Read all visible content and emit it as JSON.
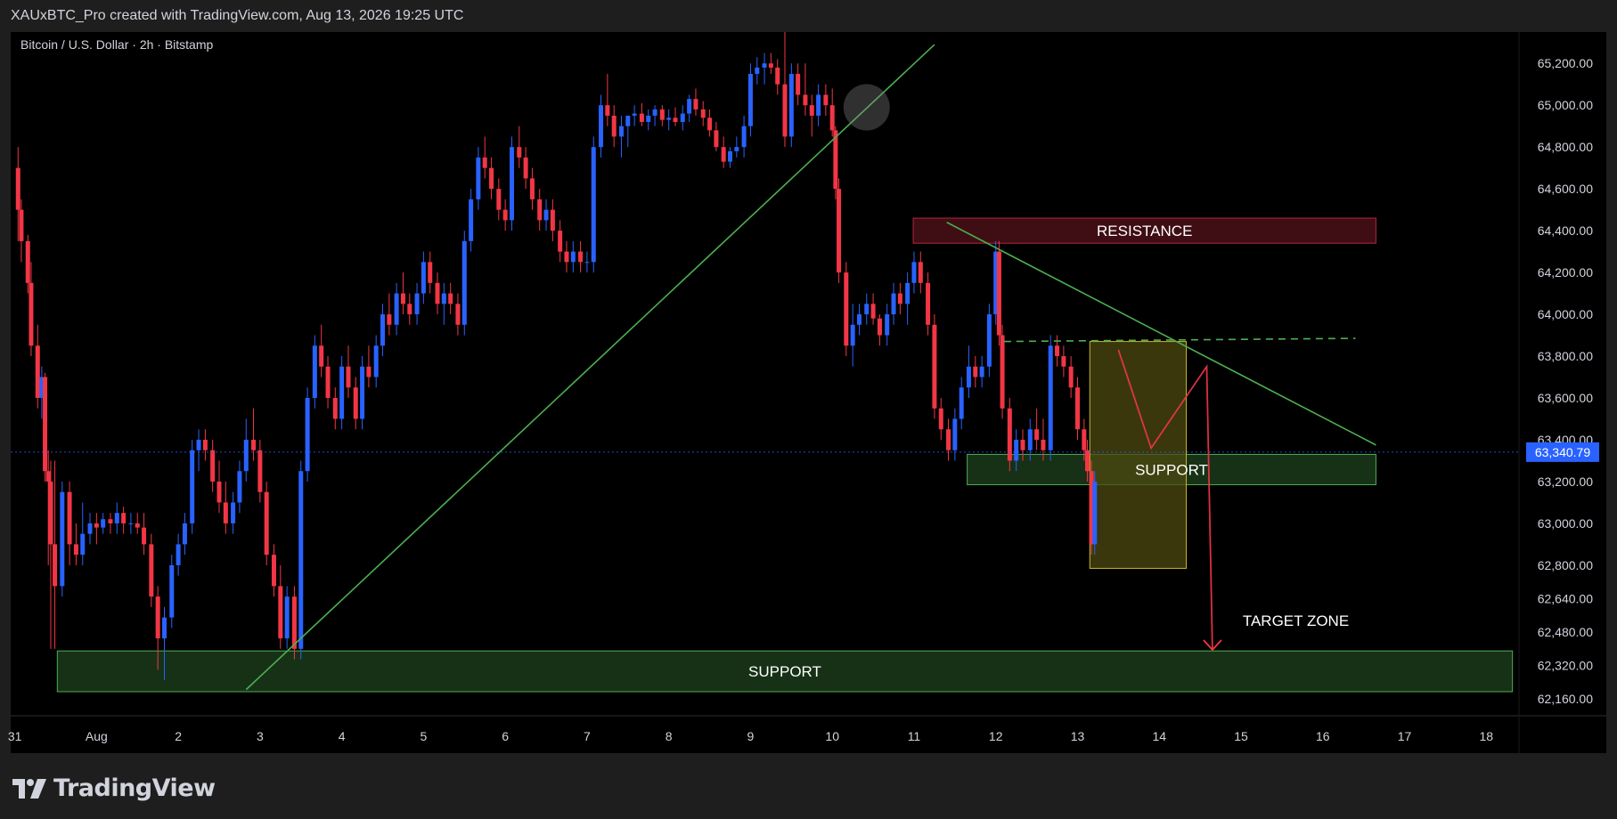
{
  "header": {
    "publisher_line": "XAUxBTC_Pro created with TradingView.com, Aug 13, 2026 19:25 UTC"
  },
  "footer": {
    "brand": "TradingView",
    "logo_icon": "tradingview-logo-icon"
  },
  "colors": {
    "bull": "#2962ff",
    "bear": "#f23645",
    "trendline": "#4caf50",
    "support_fill": "#1b3a1b",
    "resistance_fill": "#4a1018",
    "box_fill": "#4d4a10",
    "projection": "#f23645",
    "price_tag": "#2962ff"
  },
  "chart_data": {
    "type": "candlestick",
    "title": "Bitcoin / U.S. Dollar · 2h · Bitstamp",
    "x_axis": {
      "unit": "date",
      "ticks": [
        {
          "label": "31",
          "day": 0
        },
        {
          "label": "Aug",
          "day": 1
        },
        {
          "label": "2",
          "day": 2
        },
        {
          "label": "3",
          "day": 3
        },
        {
          "label": "4",
          "day": 4
        },
        {
          "label": "5",
          "day": 5
        },
        {
          "label": "6",
          "day": 6
        },
        {
          "label": "7",
          "day": 7
        },
        {
          "label": "8",
          "day": 8
        },
        {
          "label": "9",
          "day": 9
        },
        {
          "label": "10",
          "day": 10
        },
        {
          "label": "11",
          "day": 11
        },
        {
          "label": "12",
          "day": 12
        },
        {
          "label": "13",
          "day": 13
        },
        {
          "label": "14",
          "day": 14
        },
        {
          "label": "15",
          "day": 15
        },
        {
          "label": "16",
          "day": 16
        },
        {
          "label": "17",
          "day": 17
        },
        {
          "label": "18",
          "day": 18
        }
      ],
      "range": [
        -0.05,
        18.4
      ]
    },
    "y_axis": {
      "side": "right",
      "ticks": [
        "62,160.00",
        "62,320.00",
        "62,480.00",
        "62,640.00",
        "62,800.00",
        "63,000.00",
        "63,200.00",
        "63,400.00",
        "63,600.00",
        "63,800.00",
        "64,000.00",
        "64,200.00",
        "64,400.00",
        "64,600.00",
        "64,800.00",
        "65,000.00",
        "65,200.00"
      ],
      "range": [
        62080,
        65350
      ]
    },
    "last_price": {
      "label": "63,340.79",
      "value": 63340.79
    },
    "grid": false,
    "zones": [
      {
        "label": "RESISTANCE",
        "kind": "resistance",
        "x": [
          10.99,
          16.65
        ],
        "y": [
          64340,
          64460
        ]
      },
      {
        "label": "SUPPORT",
        "kind": "support",
        "x": [
          11.65,
          16.65
        ],
        "y": [
          63185,
          63330
        ]
      },
      {
        "label": "SUPPORT",
        "kind": "support",
        "x": [
          0.52,
          18.32
        ],
        "y": [
          62195,
          62390
        ]
      },
      {
        "label": "",
        "kind": "box",
        "x": [
          13.15,
          14.33
        ],
        "y": [
          62785,
          63870
        ]
      }
    ],
    "annotations": [
      {
        "label": "TARGET ZONE",
        "x": 15.02,
        "y": 62510
      }
    ],
    "lines": [
      {
        "kind": "trendline",
        "points": [
          [
            2.83,
            62205
          ],
          [
            11.25,
            65290
          ]
        ]
      },
      {
        "kind": "trendline",
        "points": [
          [
            11.4,
            64440
          ],
          [
            16.65,
            63375
          ]
        ]
      },
      {
        "kind": "dashed",
        "points": [
          [
            12.1,
            63870
          ],
          [
            16.4,
            63885
          ]
        ]
      },
      {
        "kind": "projection",
        "points": [
          [
            13.5,
            63830
          ],
          [
            13.9,
            63360
          ],
          [
            14.58,
            63750
          ],
          [
            14.65,
            62395
          ]
        ]
      }
    ],
    "highlight_circle": {
      "x": 10.42,
      "y": 64990
    },
    "candles": [
      [
        0.04,
        64700,
        64800,
        64350,
        64500
      ],
      [
        0.08,
        64500,
        64550,
        64250,
        64350
      ],
      [
        0.16,
        64350,
        64380,
        64100,
        64150
      ],
      [
        0.2,
        64150,
        64250,
        63800,
        63850
      ],
      [
        0.28,
        63850,
        63950,
        63550,
        63600
      ],
      [
        0.33,
        63600,
        63750,
        63500,
        63700
      ],
      [
        0.37,
        63700,
        63720,
        63200,
        63250
      ],
      [
        0.41,
        63250,
        63350,
        62800,
        63200
      ],
      [
        0.44,
        63200,
        63300,
        62400,
        62900
      ],
      [
        0.49,
        62900,
        63300,
        62400,
        62700
      ],
      [
        0.58,
        62700,
        63200,
        62650,
        63150
      ],
      [
        0.67,
        63150,
        63200,
        62800,
        62900
      ],
      [
        0.75,
        62900,
        63000,
        62800,
        62850
      ],
      [
        0.83,
        62850,
        63100,
        62800,
        62950
      ],
      [
        0.92,
        62950,
        63050,
        62900,
        63000
      ],
      [
        1.0,
        63000,
        63050,
        62900,
        62980
      ],
      [
        1.08,
        62980,
        63050,
        62950,
        63020
      ],
      [
        1.17,
        63020,
        63050,
        62950,
        63000
      ],
      [
        1.25,
        63000,
        63100,
        62950,
        63050
      ],
      [
        1.33,
        63050,
        63080,
        62950,
        63000
      ],
      [
        1.42,
        63000,
        63050,
        62950,
        63000
      ],
      [
        1.5,
        63000,
        63050,
        62950,
        62980
      ],
      [
        1.58,
        62980,
        63050,
        62850,
        62900
      ],
      [
        1.67,
        62900,
        62950,
        62600,
        62650
      ],
      [
        1.75,
        62650,
        62700,
        62300,
        62450
      ],
      [
        1.83,
        62450,
        62600,
        62250,
        62550
      ],
      [
        1.92,
        62550,
        62850,
        62500,
        62800
      ],
      [
        2.0,
        62800,
        62950,
        62750,
        62900
      ],
      [
        2.08,
        62900,
        63050,
        62850,
        63000
      ],
      [
        2.17,
        63000,
        63400,
        62950,
        63350
      ],
      [
        2.25,
        63350,
        63450,
        63250,
        63400
      ],
      [
        2.33,
        63400,
        63450,
        63300,
        63350
      ],
      [
        2.42,
        63350,
        63400,
        63150,
        63200
      ],
      [
        2.5,
        63200,
        63300,
        63050,
        63100
      ],
      [
        2.58,
        63100,
        63200,
        62950,
        63000
      ],
      [
        2.67,
        63000,
        63150,
        62950,
        63100
      ],
      [
        2.75,
        63100,
        63300,
        63050,
        63250
      ],
      [
        2.83,
        63250,
        63500,
        63200,
        63400
      ],
      [
        2.92,
        63400,
        63550,
        63300,
        63350
      ],
      [
        3.0,
        63350,
        63400,
        63100,
        63150
      ],
      [
        3.08,
        63150,
        63200,
        62800,
        62850
      ],
      [
        3.17,
        62850,
        62900,
        62650,
        62700
      ],
      [
        3.25,
        62700,
        62800,
        62400,
        62450
      ],
      [
        3.33,
        62450,
        62700,
        62400,
        62650
      ],
      [
        3.42,
        62650,
        62700,
        62350,
        62400
      ],
      [
        3.5,
        62400,
        63300,
        62350,
        63250
      ],
      [
        3.58,
        63250,
        63650,
        63200,
        63600
      ],
      [
        3.67,
        63600,
        63900,
        63550,
        63850
      ],
      [
        3.75,
        63850,
        63950,
        63700,
        63750
      ],
      [
        3.83,
        63750,
        63800,
        63550,
        63600
      ],
      [
        3.92,
        63600,
        63650,
        63450,
        63500
      ],
      [
        4.0,
        63500,
        63800,
        63450,
        63750
      ],
      [
        4.08,
        63750,
        63850,
        63600,
        63650
      ],
      [
        4.17,
        63650,
        63700,
        63450,
        63500
      ],
      [
        4.25,
        63500,
        63800,
        63450,
        63750
      ],
      [
        4.33,
        63750,
        63850,
        63650,
        63700
      ],
      [
        4.42,
        63700,
        63900,
        63650,
        63850
      ],
      [
        4.5,
        63850,
        64050,
        63800,
        64000
      ],
      [
        4.58,
        64000,
        64100,
        63900,
        63950
      ],
      [
        4.67,
        63950,
        64150,
        63900,
        64100
      ],
      [
        4.75,
        64100,
        64200,
        64000,
        64050
      ],
      [
        4.83,
        64050,
        64100,
        63950,
        64000
      ],
      [
        4.92,
        64000,
        64150,
        63950,
        64100
      ],
      [
        5.0,
        64100,
        64300,
        64050,
        64250
      ],
      [
        5.08,
        64250,
        64300,
        64100,
        64150
      ],
      [
        5.17,
        64150,
        64200,
        64000,
        64050
      ],
      [
        5.25,
        64050,
        64150,
        63950,
        64100
      ],
      [
        5.33,
        64100,
        64150,
        64000,
        64050
      ],
      [
        5.42,
        64050,
        64100,
        63900,
        63950
      ],
      [
        5.5,
        63950,
        64400,
        63900,
        64350
      ],
      [
        5.58,
        64350,
        64600,
        64300,
        64550
      ],
      [
        5.67,
        64550,
        64800,
        64500,
        64750
      ],
      [
        5.75,
        64750,
        64850,
        64650,
        64700
      ],
      [
        5.83,
        64700,
        64750,
        64550,
        64600
      ],
      [
        5.92,
        64600,
        64650,
        64450,
        64500
      ],
      [
        6.0,
        64500,
        64550,
        64400,
        64450
      ],
      [
        6.08,
        64450,
        64850,
        64400,
        64800
      ],
      [
        6.17,
        64800,
        64900,
        64700,
        64750
      ],
      [
        6.25,
        64750,
        64800,
        64600,
        64650
      ],
      [
        6.33,
        64650,
        64700,
        64500,
        64550
      ],
      [
        6.42,
        64550,
        64600,
        64400,
        64450
      ],
      [
        6.5,
        64450,
        64550,
        64400,
        64500
      ],
      [
        6.58,
        64500,
        64550,
        64350,
        64400
      ],
      [
        6.67,
        64400,
        64450,
        64250,
        64300
      ],
      [
        6.75,
        64300,
        64350,
        64200,
        64250
      ],
      [
        6.83,
        64250,
        64350,
        64200,
        64300
      ],
      [
        6.92,
        64300,
        64350,
        64200,
        64250
      ],
      [
        7.0,
        64250,
        64300,
        64200,
        64250
      ],
      [
        7.08,
        64250,
        64850,
        64200,
        64800
      ],
      [
        7.17,
        64800,
        65050,
        64750,
        65000
      ],
      [
        7.25,
        65000,
        65150,
        64900,
        64950
      ],
      [
        7.33,
        64950,
        65000,
        64800,
        64850
      ],
      [
        7.42,
        64850,
        64950,
        64750,
        64900
      ],
      [
        7.5,
        64900,
        64950,
        64800,
        64950
      ],
      [
        7.58,
        64950,
        65000,
        64900,
        64960
      ],
      [
        7.67,
        64960,
        65010,
        64900,
        64920
      ],
      [
        7.75,
        64920,
        64980,
        64880,
        64950
      ],
      [
        7.83,
        64950,
        65000,
        64900,
        64980
      ],
      [
        7.92,
        64980,
        65000,
        64900,
        64930
      ],
      [
        8.0,
        64930,
        64980,
        64880,
        64940
      ],
      [
        8.08,
        64940,
        64990,
        64900,
        64920
      ],
      [
        8.17,
        64920,
        65000,
        64880,
        64960
      ],
      [
        8.25,
        64960,
        65050,
        64920,
        65030
      ],
      [
        8.33,
        65030,
        65080,
        64950,
        64980
      ],
      [
        8.42,
        64980,
        65020,
        64900,
        64940
      ],
      [
        8.5,
        64940,
        64980,
        64850,
        64880
      ],
      [
        8.58,
        64880,
        64920,
        64780,
        64800
      ],
      [
        8.67,
        64800,
        64850,
        64700,
        64730
      ],
      [
        8.75,
        64730,
        64800,
        64700,
        64780
      ],
      [
        8.83,
        64780,
        64850,
        64750,
        64800
      ],
      [
        8.92,
        64800,
        64950,
        64750,
        64900
      ],
      [
        9.0,
        64900,
        65200,
        64850,
        65150
      ],
      [
        9.08,
        65150,
        65230,
        65100,
        65180
      ],
      [
        9.17,
        65180,
        65250,
        65100,
        65200
      ],
      [
        9.25,
        65200,
        65250,
        65150,
        65180
      ],
      [
        9.33,
        65180,
        65220,
        65050,
        65100
      ],
      [
        9.42,
        65100,
        65350,
        64800,
        64850
      ],
      [
        9.5,
        64850,
        65200,
        64800,
        65150
      ],
      [
        9.58,
        65150,
        65200,
        65000,
        65050
      ],
      [
        9.67,
        65050,
        65200,
        64950,
        65000
      ],
      [
        9.75,
        65000,
        65050,
        64850,
        64950
      ],
      [
        9.83,
        64950,
        65100,
        64900,
        65050
      ],
      [
        9.92,
        65050,
        65100,
        64950,
        65000
      ],
      [
        10.0,
        65000,
        65080,
        64850,
        64880
      ],
      [
        10.04,
        64880,
        64900,
        64550,
        64600
      ],
      [
        10.08,
        64600,
        64650,
        64150,
        64200
      ],
      [
        10.17,
        64200,
        64250,
        63800,
        63850
      ],
      [
        10.25,
        63850,
        64050,
        63750,
        63950
      ],
      [
        10.33,
        63950,
        64050,
        63900,
        64000
      ],
      [
        10.42,
        64000,
        64100,
        63950,
        64050
      ],
      [
        10.5,
        64050,
        64100,
        63950,
        63980
      ],
      [
        10.58,
        63980,
        64000,
        63850,
        63900
      ],
      [
        10.67,
        63900,
        64050,
        63850,
        64000
      ],
      [
        10.75,
        64000,
        64150,
        63950,
        64100
      ],
      [
        10.83,
        64100,
        64150,
        64000,
        64050
      ],
      [
        10.92,
        64050,
        64200,
        63950,
        64150
      ],
      [
        11.0,
        64150,
        64300,
        64100,
        64250
      ],
      [
        11.08,
        64250,
        64300,
        64100,
        64150
      ],
      [
        11.17,
        64150,
        64200,
        63900,
        63950
      ],
      [
        11.25,
        63950,
        64000,
        63500,
        63550
      ],
      [
        11.33,
        63550,
        63600,
        63400,
        63450
      ],
      [
        11.42,
        63450,
        63500,
        63300,
        63350
      ],
      [
        11.5,
        63350,
        63550,
        63300,
        63500
      ],
      [
        11.58,
        63500,
        63700,
        63450,
        63650
      ],
      [
        11.67,
        63650,
        63850,
        63600,
        63750
      ],
      [
        11.75,
        63750,
        63800,
        63650,
        63700
      ],
      [
        11.83,
        63700,
        63800,
        63650,
        63750
      ],
      [
        11.92,
        63750,
        64050,
        63700,
        64000
      ],
      [
        12.0,
        64000,
        64350,
        63950,
        64300
      ],
      [
        12.04,
        64300,
        64350,
        63850,
        63900
      ],
      [
        12.08,
        63900,
        63950,
        63500,
        63550
      ],
      [
        12.17,
        63550,
        63600,
        63250,
        63300
      ],
      [
        12.25,
        63300,
        63450,
        63250,
        63400
      ],
      [
        12.33,
        63400,
        63450,
        63300,
        63350
      ],
      [
        12.42,
        63350,
        63500,
        63300,
        63450
      ],
      [
        12.5,
        63450,
        63550,
        63350,
        63400
      ],
      [
        12.58,
        63400,
        63500,
        63300,
        63350
      ],
      [
        12.67,
        63350,
        63900,
        63300,
        63850
      ],
      [
        12.75,
        63850,
        63900,
        63750,
        63800
      ],
      [
        12.83,
        63800,
        63850,
        63700,
        63750
      ],
      [
        12.92,
        63750,
        63800,
        63600,
        63650
      ],
      [
        13.0,
        63650,
        63700,
        63400,
        63450
      ],
      [
        13.08,
        63450,
        63500,
        63300,
        63350
      ],
      [
        13.12,
        63350,
        63400,
        63200,
        63250
      ],
      [
        13.17,
        63250,
        63300,
        62850,
        62900
      ],
      [
        13.21,
        62900,
        63250,
        62850,
        63200
      ]
    ]
  }
}
